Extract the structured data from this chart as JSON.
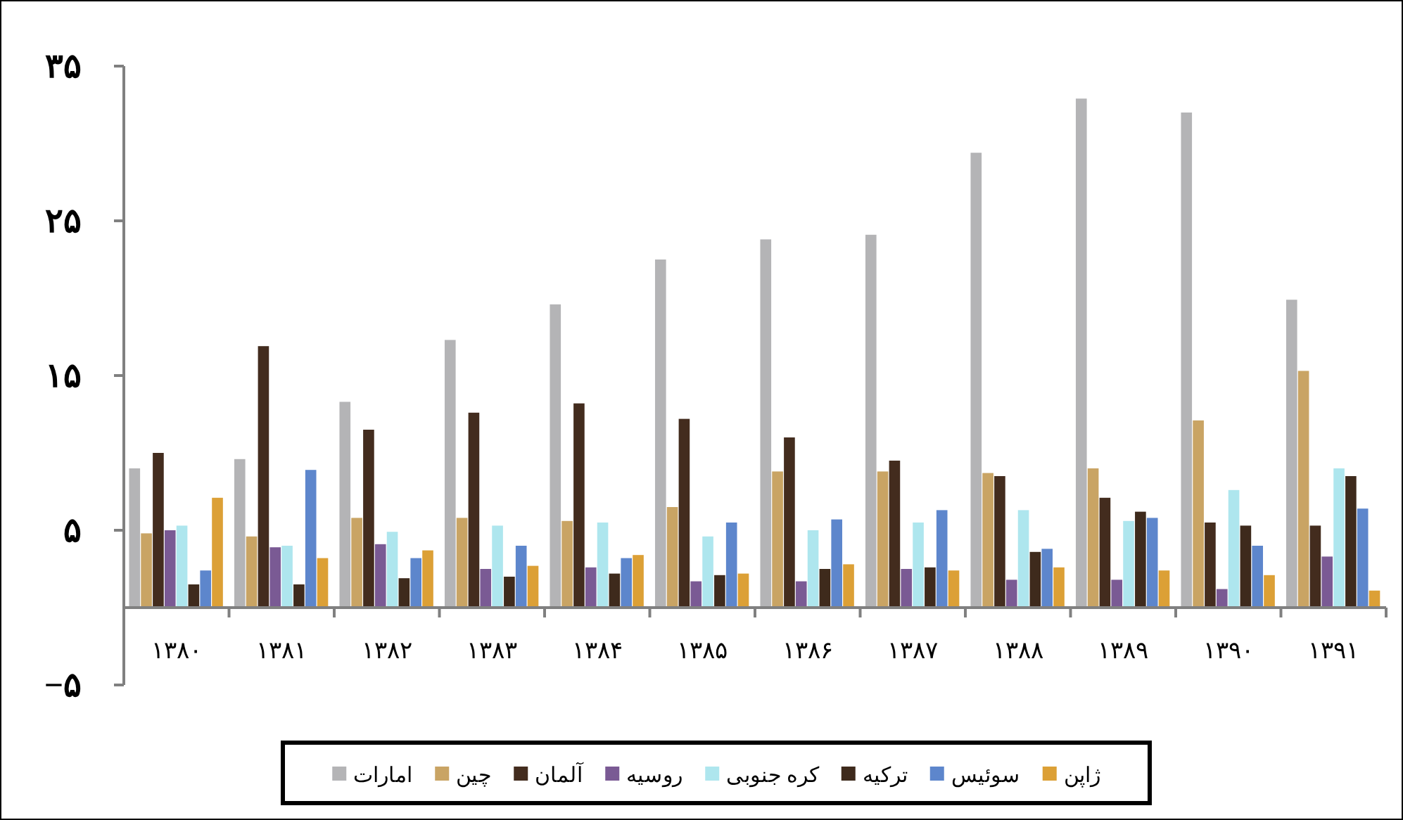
{
  "chart_data": {
    "type": "bar",
    "categories": [
      "۱۳۸۰",
      "۱۳۸۱",
      "۱۳۸۲",
      "۱۳۸۳",
      "۱۳۸۴",
      "۱۳۸۵",
      "۱۳۸۶",
      "۱۳۸۷",
      "۱۳۸۸",
      "۱۳۸۹",
      "۱۳۹۰",
      "۱۳۹۱"
    ],
    "series": [
      {
        "name": "امارات",
        "color": "#b4b4b6",
        "values": [
          9.0,
          9.6,
          13.3,
          17.3,
          19.6,
          22.5,
          23.8,
          24.1,
          29.4,
          32.9,
          32.0,
          19.9
        ]
      },
      {
        "name": "چین",
        "color": "#c9a464",
        "values": [
          4.8,
          4.6,
          5.8,
          5.8,
          5.6,
          6.5,
          8.8,
          8.8,
          8.7,
          9.0,
          12.1,
          15.3
        ]
      },
      {
        "name": "آلمان",
        "color": "#432c1e",
        "values": [
          10.0,
          16.9,
          11.5,
          12.6,
          13.2,
          12.2,
          11.0,
          9.5,
          8.5,
          7.1,
          5.5,
          5.3
        ]
      },
      {
        "name": "روسیه",
        "color": "#7a5a94",
        "values": [
          5.0,
          3.9,
          4.1,
          2.5,
          2.6,
          1.7,
          1.7,
          2.5,
          1.8,
          1.8,
          1.2,
          3.3
        ]
      },
      {
        "name": "کره جنوبی",
        "color": "#aee6ee",
        "values": [
          5.3,
          4.0,
          4.9,
          5.3,
          5.5,
          4.6,
          5.0,
          5.5,
          6.3,
          5.6,
          7.6,
          9.0
        ]
      },
      {
        "name": "ترکیه",
        "color": "#3e2a1c",
        "values": [
          1.5,
          1.5,
          1.9,
          2.0,
          2.2,
          2.1,
          2.5,
          2.6,
          3.6,
          6.2,
          5.3,
          8.5
        ]
      },
      {
        "name": "سوئیس",
        "color": "#5d86cc",
        "values": [
          2.4,
          8.9,
          3.2,
          4.0,
          3.2,
          5.5,
          5.7,
          6.3,
          3.8,
          5.8,
          4.0,
          6.4
        ]
      },
      {
        "name": "ژاپن",
        "color": "#dca036",
        "values": [
          7.1,
          3.2,
          3.7,
          2.7,
          3.4,
          2.2,
          2.8,
          2.4,
          2.6,
          2.4,
          2.1,
          1.1
        ]
      }
    ],
    "ylim": [
      -5,
      35
    ],
    "yticks": [
      {
        "value": -5,
        "label": "−۵"
      },
      {
        "value": 5,
        "label": "۵"
      },
      {
        "value": 15,
        "label": "۱۵"
      },
      {
        "value": 25,
        "label": "۲۵"
      },
      {
        "value": 35,
        "label": "۳۵"
      }
    ],
    "legend": "bottom"
  }
}
